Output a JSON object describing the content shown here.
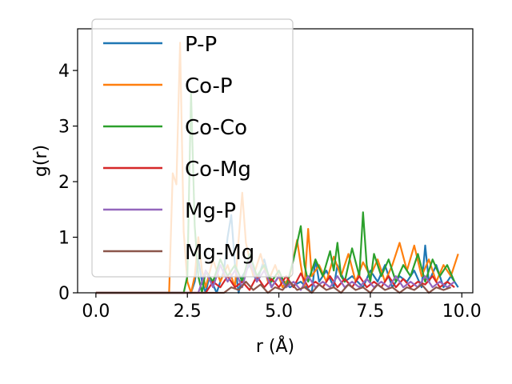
{
  "chart_data": {
    "type": "line",
    "xlabel": "r (Å)",
    "ylabel": "g(r)",
    "xlim": [
      -0.5,
      10.3
    ],
    "ylim": [
      0,
      4.75
    ],
    "xticks": [
      0.0,
      2.5,
      5.0,
      7.5,
      10.0
    ],
    "xtick_labels": [
      "0.0",
      "2.5",
      "5.0",
      "7.5",
      "10.0"
    ],
    "yticks": [
      0,
      1,
      2,
      3,
      4
    ],
    "ytick_labels": [
      "0",
      "1",
      "2",
      "3",
      "4"
    ],
    "grid": false,
    "legend_position": "upper-left",
    "series": [
      {
        "name": "P-P",
        "color": "#1f77b4",
        "x": [
          0,
          2.5,
          2.6,
          2.7,
          2.8,
          2.9,
          3.0,
          3.1,
          3.3,
          3.5,
          3.6,
          3.7,
          3.8,
          3.9,
          4.0,
          4.2,
          4.4,
          4.6,
          4.8,
          5.0,
          5.3,
          5.6,
          5.9,
          6.0,
          6.1,
          6.3,
          6.5,
          6.6,
          6.8,
          7.0,
          7.3,
          7.5,
          7.7,
          7.9,
          8.1,
          8.3,
          8.5,
          8.7,
          8.9,
          9.0,
          9.1,
          9.3,
          9.5,
          9.7,
          9.9
        ],
        "y": [
          0,
          0,
          0,
          0.2,
          0.6,
          0.2,
          0,
          0.3,
          0,
          0.4,
          1.0,
          1.4,
          0.5,
          0,
          0.3,
          0.5,
          0.2,
          0.6,
          0.1,
          0.3,
          0.1,
          0.2,
          0,
          0.6,
          0.2,
          0.4,
          0.1,
          0.5,
          0.2,
          0.3,
          0.1,
          0.4,
          0.2,
          0.5,
          0.1,
          0.3,
          0.2,
          0.4,
          0.1,
          0.85,
          0.2,
          0.5,
          0.1,
          0.3,
          0.1
        ]
      },
      {
        "name": "Co-P",
        "color": "#ff7f0e",
        "x": [
          0,
          2.0,
          2.1,
          2.2,
          2.3,
          2.4,
          2.5,
          2.6,
          2.7,
          2.8,
          2.9,
          3.0,
          3.2,
          3.4,
          3.6,
          3.8,
          4.0,
          4.1,
          4.3,
          4.5,
          4.7,
          4.9,
          5.1,
          5.3,
          5.5,
          5.6,
          5.7,
          5.8,
          5.9,
          6.1,
          6.3,
          6.5,
          6.7,
          6.9,
          7.1,
          7.3,
          7.5,
          7.7,
          7.9,
          8.1,
          8.3,
          8.5,
          8.7,
          8.9,
          9.1,
          9.3,
          9.5,
          9.7,
          9.9
        ],
        "y": [
          0,
          0,
          2.15,
          1.95,
          4.5,
          1.1,
          0.2,
          0,
          0.3,
          1.0,
          0.4,
          0.1,
          0.6,
          0.2,
          0.5,
          0.1,
          1.8,
          0.9,
          0.3,
          0.7,
          0.2,
          0.5,
          0.1,
          0.3,
          0.95,
          0.5,
          0.1,
          1.15,
          0.3,
          0.5,
          0.2,
          0.65,
          0.3,
          0.7,
          0.2,
          0.55,
          0.3,
          0.6,
          0.2,
          0.5,
          0.9,
          0.4,
          0.85,
          0.3,
          0.6,
          0.2,
          0.5,
          0.3,
          0.7
        ]
      },
      {
        "name": "Co-Co",
        "color": "#2ca02c",
        "x": [
          0,
          2.4,
          2.5,
          2.6,
          2.7,
          2.8,
          2.9,
          3.0,
          3.2,
          3.4,
          3.6,
          3.8,
          4.0,
          4.2,
          4.4,
          4.6,
          4.8,
          5.0,
          5.2,
          5.4,
          5.6,
          5.7,
          5.8,
          6.0,
          6.2,
          6.4,
          6.5,
          6.6,
          6.7,
          6.8,
          7.0,
          7.2,
          7.3,
          7.4,
          7.5,
          7.6,
          7.8,
          8.0,
          8.2,
          8.4,
          8.6,
          8.8,
          9.0,
          9.2,
          9.4,
          9.6,
          9.8
        ],
        "y": [
          0,
          0,
          0.3,
          3.6,
          1.2,
          0.3,
          0,
          0.4,
          0.2,
          0.6,
          0.3,
          0.5,
          0.2,
          0.7,
          0.3,
          0.5,
          0.2,
          0.4,
          0.1,
          0.6,
          1.2,
          0.5,
          0.2,
          0.6,
          0.3,
          0.75,
          0.4,
          0.9,
          0.3,
          0.2,
          0.8,
          0.3,
          1.45,
          0.5,
          0.2,
          0.7,
          0.3,
          0.6,
          0.2,
          0.5,
          0.3,
          0.7,
          0.2,
          0.6,
          0.3,
          0.5,
          0.2
        ]
      },
      {
        "name": "Co-Mg",
        "color": "#d62728",
        "x": [
          0,
          3.0,
          3.2,
          3.4,
          3.6,
          3.8,
          4.0,
          4.2,
          4.4,
          4.6,
          4.8,
          5.0,
          5.2,
          5.4,
          5.6,
          5.8,
          6.0,
          6.2,
          6.4,
          6.6,
          6.8,
          7.0,
          7.2,
          7.4,
          7.6,
          7.8,
          8.0,
          8.2,
          8.4,
          8.6,
          8.8,
          9.0,
          9.2,
          9.4,
          9.6,
          9.8
        ],
        "y": [
          0,
          0,
          0.2,
          0.1,
          0.3,
          0.1,
          0.2,
          0.05,
          0.3,
          0.1,
          0.25,
          0.1,
          0.3,
          0.1,
          0.35,
          0.1,
          0.2,
          0.1,
          0.3,
          0.1,
          0.25,
          0.1,
          0.3,
          0.1,
          0.2,
          0.1,
          0.3,
          0.1,
          0.25,
          0.1,
          0.2,
          0.15,
          0.3,
          0.1,
          0.2,
          0.1
        ]
      },
      {
        "name": "Mg-P",
        "color": "#9467bd",
        "x": [
          0,
          2.8,
          3.0,
          3.2,
          3.4,
          3.6,
          3.8,
          4.0,
          4.2,
          4.4,
          4.6,
          4.8,
          5.0,
          5.2,
          5.4,
          5.6,
          5.8,
          6.0,
          6.2,
          6.4,
          6.6,
          6.8,
          7.0,
          7.2,
          7.4,
          7.6,
          7.8,
          8.0,
          8.2,
          8.4,
          8.6,
          8.8,
          9.0,
          9.2,
          9.4,
          9.6,
          9.8
        ],
        "y": [
          0,
          0,
          0.4,
          0.1,
          0.5,
          0.2,
          0.4,
          0.1,
          0.6,
          0.2,
          0.4,
          0.1,
          0.3,
          0.1,
          0.2,
          0.05,
          0.3,
          0.1,
          0.2,
          0.1,
          0.3,
          0.1,
          0.2,
          0.1,
          0.25,
          0.1,
          0.2,
          0.1,
          0.3,
          0.1,
          0.2,
          0.1,
          0.3,
          0.1,
          0.2,
          0.1,
          0.2
        ]
      },
      {
        "name": "Mg-Mg",
        "color": "#8c564b",
        "x": [
          0,
          3.5,
          3.7,
          3.9,
          4.1,
          4.3,
          4.5,
          4.7,
          4.9,
          5.1,
          5.3,
          5.5,
          5.7,
          5.9,
          6.1,
          6.3,
          6.5,
          6.7,
          6.9,
          7.1,
          7.3,
          7.5,
          7.7,
          7.9,
          8.1,
          8.3,
          8.5,
          8.7,
          8.9,
          9.1,
          9.3,
          9.5,
          9.7
        ],
        "y": [
          0,
          0,
          0.1,
          0.05,
          0.2,
          0.05,
          0.15,
          0,
          0.1,
          0.05,
          0.2,
          0.05,
          0.1,
          0,
          0.15,
          0.05,
          0.1,
          0,
          0.15,
          0.05,
          0.1,
          0,
          0.15,
          0.05,
          0.1,
          0,
          0.1,
          0.05,
          0.15,
          0,
          0.1,
          0.05,
          0.1
        ]
      }
    ]
  }
}
